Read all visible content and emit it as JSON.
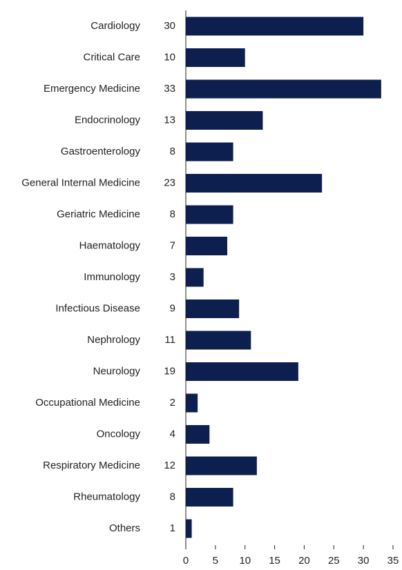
{
  "chart_data": {
    "type": "bar",
    "orientation": "horizontal",
    "categories": [
      "Cardiology",
      "Critical Care",
      "Emergency Medicine",
      "Endocrinology",
      "Gastroenterology",
      "General Internal Medicine",
      "Geriatric Medicine",
      "Haematology",
      "Immunology",
      "Infectious Disease",
      "Nephrology",
      "Neurology",
      "Occupational Medicine",
      "Oncology",
      "Respiratory Medicine",
      "Rheumatology",
      "Others"
    ],
    "values": [
      30,
      10,
      33,
      13,
      8,
      23,
      8,
      7,
      3,
      9,
      11,
      19,
      2,
      4,
      12,
      8,
      1
    ],
    "color": "#0c1f4f",
    "xlim": [
      0,
      35
    ],
    "xticks": [
      0,
      5,
      10,
      15,
      20,
      25,
      30,
      35
    ],
    "grid": false
  }
}
